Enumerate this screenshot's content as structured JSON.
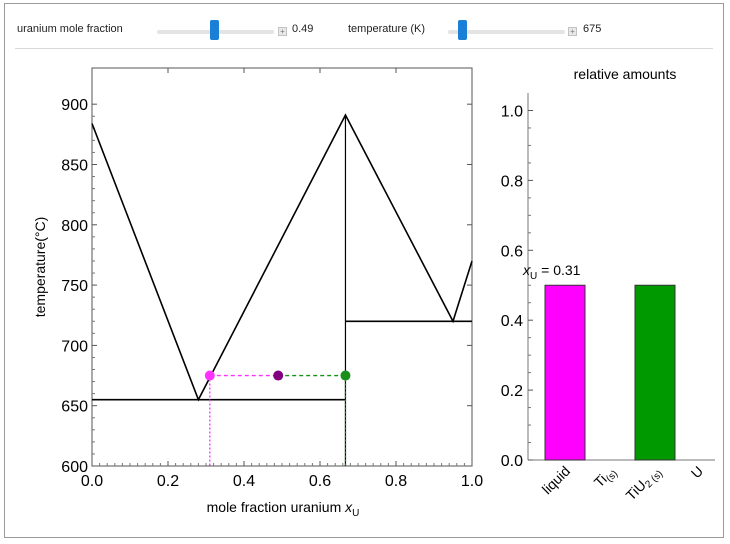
{
  "controls": {
    "uranium": {
      "label": "uranium mole fraction",
      "value": "0.49",
      "fraction": 0.49
    },
    "temperature": {
      "label": "temperature (K)",
      "value": "675",
      "min": 600,
      "max": 1200
    }
  },
  "chart_data": [
    {
      "type": "line",
      "title": "",
      "xlabel": "mole fraction uranium",
      "xlabel_var": "x",
      "xlabel_sub": "U",
      "ylabel": "temperature(°C)",
      "xlim": [
        0,
        1
      ],
      "ylim": [
        600,
        930
      ],
      "xticks": [
        0.0,
        0.2,
        0.4,
        0.6,
        0.8,
        1.0
      ],
      "xtick_labels": [
        "0.0",
        "0.2",
        "0.4",
        "0.6",
        "0.8",
        "1.0"
      ],
      "yticks": [
        600,
        650,
        700,
        750,
        800,
        850,
        900
      ],
      "ytick_labels": [
        "600",
        "650",
        "700",
        "750",
        "800",
        "850",
        "900"
      ],
      "liquidus": [
        [
          0.0,
          884
        ],
        [
          0.28,
          655
        ],
        [
          0.667,
          891
        ],
        [
          0.95,
          720
        ],
        [
          1.0,
          770
        ]
      ],
      "eutectic_lines": [
        {
          "x": [
            0.0,
            0.667
          ],
          "y": 655
        },
        {
          "x": [
            0.667,
            1.0
          ],
          "y": 720
        }
      ],
      "compound_line": {
        "x": 0.667,
        "y": [
          600,
          891
        ]
      },
      "tie_line": {
        "y": 675,
        "x_liquid": 0.31,
        "x_overall": 0.49,
        "x_solid": 0.667
      },
      "point_colors": {
        "liquid": "#ff33ff",
        "overall": "#800080",
        "solid": "#1a8f1a"
      }
    },
    {
      "type": "bar",
      "title": "relative amounts",
      "categories": [
        "liquid",
        "Ti(s)",
        "TiU2(s)",
        "U"
      ],
      "values": [
        0.5,
        0.0,
        0.5,
        0.0
      ],
      "colors": [
        "#ff00ff",
        "#888888",
        "#009900",
        "#888888"
      ],
      "ylim": [
        0,
        1.05
      ],
      "yticks": [
        0.0,
        0.2,
        0.4,
        0.6,
        0.8,
        1.0
      ],
      "ytick_labels": [
        "0.0",
        "0.2",
        "0.4",
        "0.6",
        "0.8",
        "1.0"
      ],
      "annotation": {
        "var": "x",
        "sub": "U",
        "text": " = 0.31"
      }
    }
  ]
}
